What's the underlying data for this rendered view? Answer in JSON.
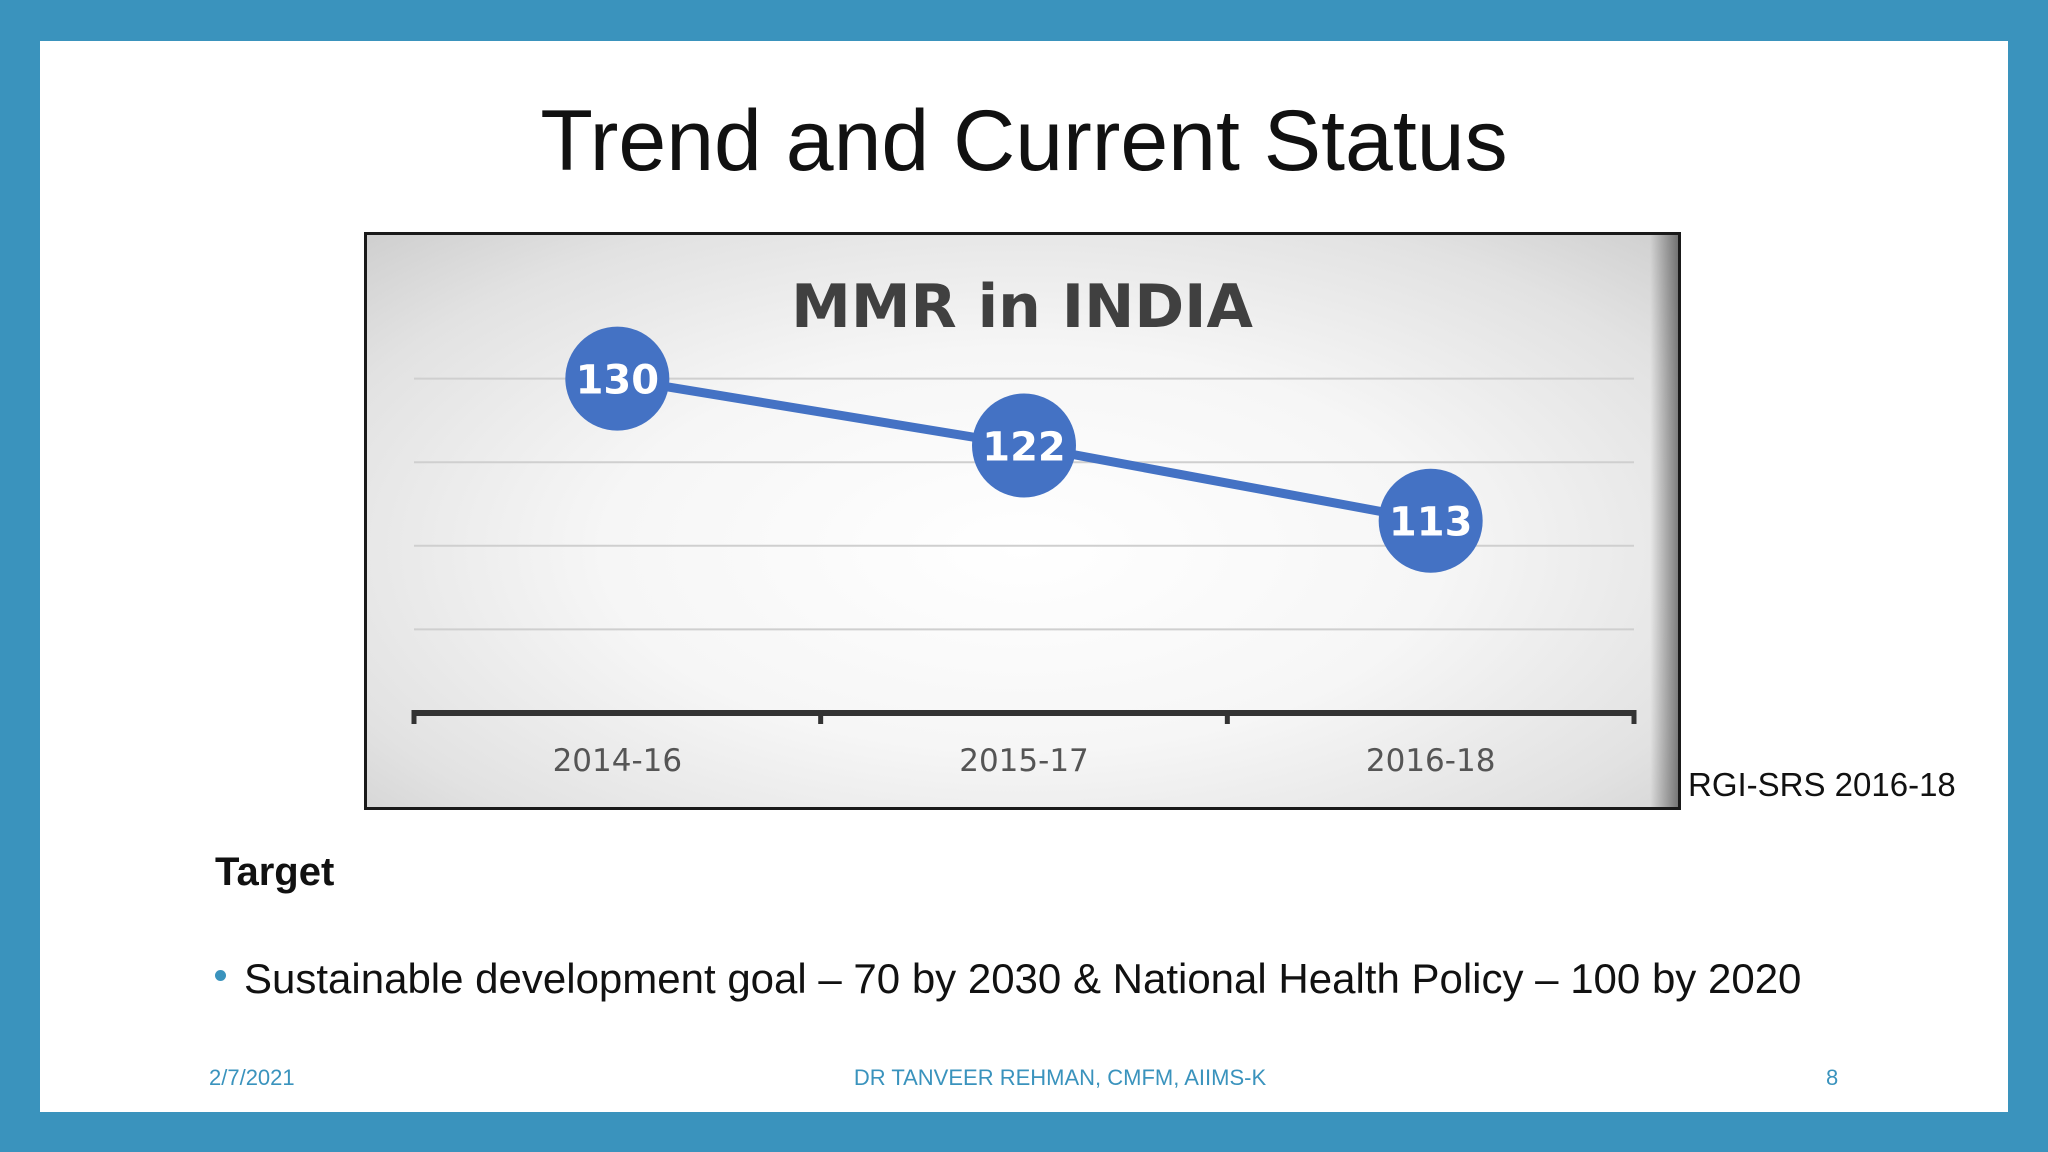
{
  "slide": {
    "title": "Trend and Current Status",
    "source_note": "RGI-SRS 2016-18",
    "target_heading": "Target",
    "bullet": "Sustainable development goal – 70 by 2030 & National Health Policy – 100 by 2020",
    "footer": {
      "date": "2/7/2021",
      "author": "DR TANVEER REHMAN, CMFM, AIIMS-K",
      "page": "8"
    }
  },
  "colors": {
    "frame": "#3a93bd",
    "series": "#4472c4",
    "marker_text": "#ffffff",
    "chart_title": "#404040",
    "tick_label": "#555555"
  },
  "chart_data": {
    "type": "line",
    "title": "MMR in INDIA",
    "categories": [
      "2014-16",
      "2015-17",
      "2016-18"
    ],
    "series": [
      {
        "name": "MMR",
        "values": [
          130,
          122,
          113
        ]
      }
    ],
    "data_labels": [
      "130",
      "122",
      "113"
    ],
    "ylim": [
      90,
      140
    ],
    "gridlines": [
      100,
      110,
      120,
      130
    ],
    "xlabel": "",
    "ylabel": "",
    "legend": "none"
  }
}
